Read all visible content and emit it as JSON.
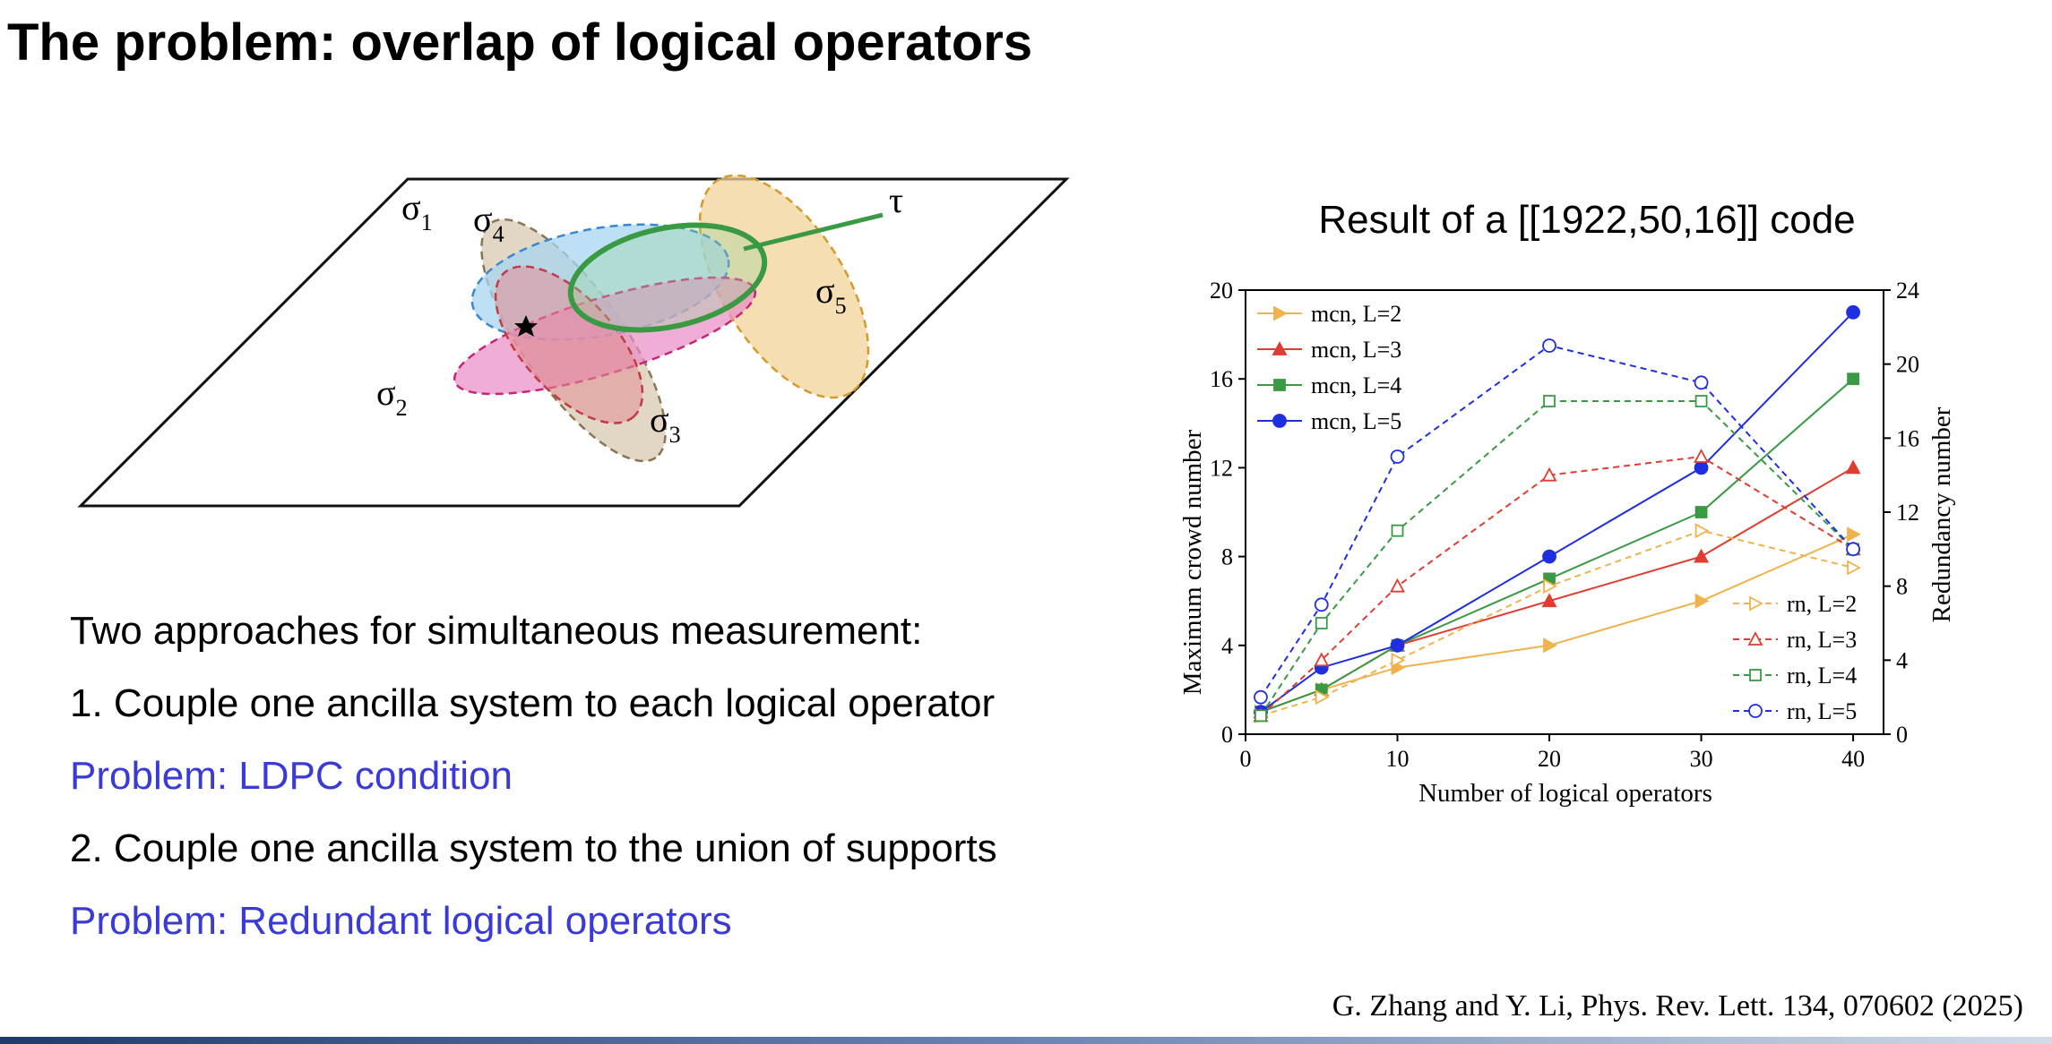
{
  "slide": {
    "title": "The problem: overlap of logical operators"
  },
  "diagram": {
    "labels": {
      "sigma1": "σ",
      "sigma1_sub": "1",
      "sigma2": "σ",
      "sigma2_sub": "2",
      "sigma3": "σ",
      "sigma3_sub": "3",
      "sigma4": "σ",
      "sigma4_sub": "4",
      "sigma5": "σ",
      "sigma5_sub": "5",
      "tau": "τ"
    },
    "colors": {
      "sigma1": "#d8c9b2",
      "sigma2": "#ea8cc6",
      "sigma3": "#e38e94",
      "sigma4": "#a7d6f0",
      "sigma5": "#f3d39a",
      "tau": "#3a9a44"
    }
  },
  "text": {
    "intro": "Two approaches for simultaneous measurement:",
    "approach1": " 1. Couple one ancilla system to each logical operator",
    "problem1": "Problem: LDPC condition",
    "approach2": "2. Couple one ancilla system to the union of supports",
    "problem2": "Problem: Redundant logical operators"
  },
  "citation": "G. Zhang and Y. Li, Phys. Rev. Lett. 134, 070602 (2025)",
  "chart_data": {
    "type": "line",
    "title": "Result of a [[1922,50,16]] code",
    "xlabel": "Number of logical operators",
    "ylabel": "Maximum crowd number",
    "y2label": "Redundancy number",
    "xlim": [
      0,
      42
    ],
    "ylim": [
      0,
      20
    ],
    "y2lim": [
      0,
      24
    ],
    "x_ticks": [
      0,
      10,
      20,
      30,
      40
    ],
    "y_ticks": [
      0,
      4,
      8,
      12,
      16,
      20
    ],
    "y2_ticks": [
      0,
      4,
      8,
      12,
      16,
      20,
      24
    ],
    "x": [
      1,
      5,
      10,
      20,
      30,
      40
    ],
    "legend_left_position": "top-left",
    "legend_right_position": "bottom-right",
    "series": [
      {
        "name": "mcn, L=2",
        "axis": "left",
        "style": "solid",
        "marker": "triangle-right",
        "filled": true,
        "color": "#f0b24c",
        "values": [
          1,
          2,
          3,
          4,
          6,
          9
        ]
      },
      {
        "name": "mcn, L=3",
        "axis": "left",
        "style": "solid",
        "marker": "triangle-up",
        "filled": true,
        "color": "#e03c31",
        "values": [
          1,
          2,
          4,
          6,
          8,
          12
        ]
      },
      {
        "name": "mcn, L=4",
        "axis": "left",
        "style": "solid",
        "marker": "square",
        "filled": true,
        "color": "#3a9a44",
        "values": [
          1,
          2,
          4,
          7,
          10,
          16
        ]
      },
      {
        "name": "mcn, L=5",
        "axis": "left",
        "style": "solid",
        "marker": "circle",
        "filled": true,
        "color": "#1e2ee0",
        "values": [
          1,
          3,
          4,
          8,
          12,
          19
        ]
      },
      {
        "name": "rn, L=2",
        "axis": "right",
        "style": "dashed",
        "marker": "triangle-right",
        "filled": false,
        "color": "#f0b24c",
        "values": [
          1,
          2,
          4,
          8,
          11,
          9
        ]
      },
      {
        "name": "rn, L=3",
        "axis": "right",
        "style": "dashed",
        "marker": "triangle-up",
        "filled": false,
        "color": "#e03c31",
        "values": [
          1,
          4,
          8,
          14,
          15,
          10
        ]
      },
      {
        "name": "rn, L=4",
        "axis": "right",
        "style": "dashed",
        "marker": "square",
        "filled": false,
        "color": "#3a9a44",
        "values": [
          1,
          6,
          11,
          18,
          18,
          10
        ]
      },
      {
        "name": "rn, L=5",
        "axis": "right",
        "style": "dashed",
        "marker": "circle",
        "filled": false,
        "color": "#1e2ee0",
        "values": [
          2,
          7,
          15,
          21,
          19,
          10
        ]
      }
    ]
  }
}
